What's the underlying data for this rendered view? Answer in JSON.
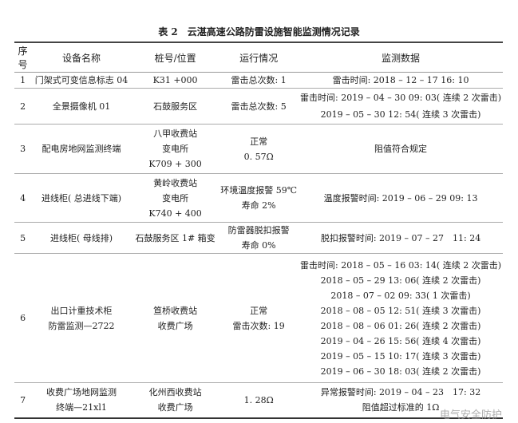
{
  "title": "表 2　云湛高速公路防雷设施智能监测情况记录",
  "headers": [
    "序号",
    "设备名称",
    "桩号/位置",
    "运行情况",
    "监测数据"
  ],
  "rows": [
    {
      "no": "1",
      "name": [
        "门架式可变信息标志 04"
      ],
      "location": [
        "K31 +000"
      ],
      "status": [
        "雷击总次数: 1"
      ],
      "data": [
        "雷击时间: 2018 – 12 – 17 16: 10"
      ]
    },
    {
      "no": "2",
      "name": [
        "全景摄像机 01"
      ],
      "location": [
        "石鼓服务区"
      ],
      "status": [
        "雷击总次数: 5"
      ],
      "data": [
        "雷击时间: 2019 – 04 – 30 09: 03( 连续 2 次雷击)",
        "2019 – 05 – 30 12: 54( 连续 3 次雷击)"
      ]
    },
    {
      "no": "3",
      "name": [
        "配电房地网监测终端"
      ],
      "location": [
        "八甲收费站",
        "变电所",
        "K709 + 300"
      ],
      "status": [
        "正常",
        "0. 57Ω"
      ],
      "data": [
        "阻值符合规定"
      ]
    },
    {
      "no": "4",
      "name": [
        "进线柜( 总进线下端)"
      ],
      "location": [
        "黄岭收费站",
        "变电所",
        "K740 + 400"
      ],
      "status": [
        "环境温度报警 59℃",
        "寿命 2%"
      ],
      "data": [
        "温度报警时间: 2019 – 06 – 29 09: 13"
      ]
    },
    {
      "no": "5",
      "name": [
        "进线柜( 母线排)"
      ],
      "location": [
        "石鼓服务区 1# 箱变"
      ],
      "status": [
        "防雷器脱扣报警",
        "寿命 0%"
      ],
      "data": [
        "脱扣报警时间: 2019 – 07 – 27　11: 24"
      ]
    },
    {
      "no": "6",
      "name": [
        "出口计重技术柜",
        "防雷监测—2722"
      ],
      "location": [
        "笪桥收费站",
        "收费广场"
      ],
      "status": [
        "正常",
        "雷击次数: 19"
      ],
      "data": [
        "雷击时间: 2018 – 05 – 16 03: 14( 连续 2 次雷击)",
        "2018 – 05 – 29 13: 06( 连续 2 次雷击)",
        "2018 – 07 – 02 09: 33( 1 次雷击)",
        "2018 – 08 – 05 12: 51( 连续 3 次雷击)",
        "2018 – 08 – 06 01: 26( 连续 2 次雷击)",
        "2019 – 04 – 26 15: 56( 连续 4 次雷击)",
        "2019 – 05 – 15 10: 17( 连续 3 次雷击)",
        "2019 – 06 – 30 18: 03( 连续 2 次雷击)"
      ]
    },
    {
      "no": "7",
      "name": [
        "收费广场地网监测",
        "终端—21xl1"
      ],
      "location": [
        "化州西收费站",
        "收费广场"
      ],
      "status": [
        "1. 28Ω"
      ],
      "data": [
        "异常报警时间: 2019 – 04 – 23　17: 32",
        "阻值超过标准的 1Ω"
      ]
    }
  ],
  "watermark": "电气安全防护"
}
